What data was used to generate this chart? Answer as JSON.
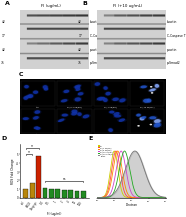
{
  "panel_labels": [
    "A",
    "B",
    "C",
    "D",
    "E"
  ],
  "bar_categories": [
    "ctrl",
    "H2O2",
    "Doxycyc",
    "0.4",
    "0.5",
    "1",
    "2",
    "4",
    "10",
    "100"
  ],
  "bar_values": [
    1.0,
    1.65,
    4.8,
    1.05,
    1.0,
    0.95,
    0.9,
    0.85,
    0.8,
    0.78
  ],
  "bar_colors": [
    "#b8860b",
    "#b8860b",
    "#cc2200",
    "#228b22",
    "#228b22",
    "#228b22",
    "#228b22",
    "#228b22",
    "#228b22",
    "#228b22"
  ],
  "bar_ylabel": "ROS Fold Change",
  "bar_xlabel": "FI (ug/ml)",
  "flow_colors": [
    "#cccc00",
    "#ff4444",
    "#ff8800",
    "#cc44cc",
    "#22aa22",
    "#888888"
  ],
  "flow_labels": [
    "ctrl",
    "FI (1 ug/ml)",
    "FI (5 ug/ml)",
    "FI (10 ug/ml)",
    "FI (100 ug/ml)",
    "H2O2"
  ],
  "wb_a_title": "FI (ug/mL)",
  "wb_b_title": "FI (+10 ug/mL)",
  "background_color": "#ffffff",
  "wb_bg": 0.82,
  "wb_band_dark": 0.25,
  "wb_band_mid": 0.45,
  "panel_c_rows": 2,
  "panel_c_cols": 4
}
